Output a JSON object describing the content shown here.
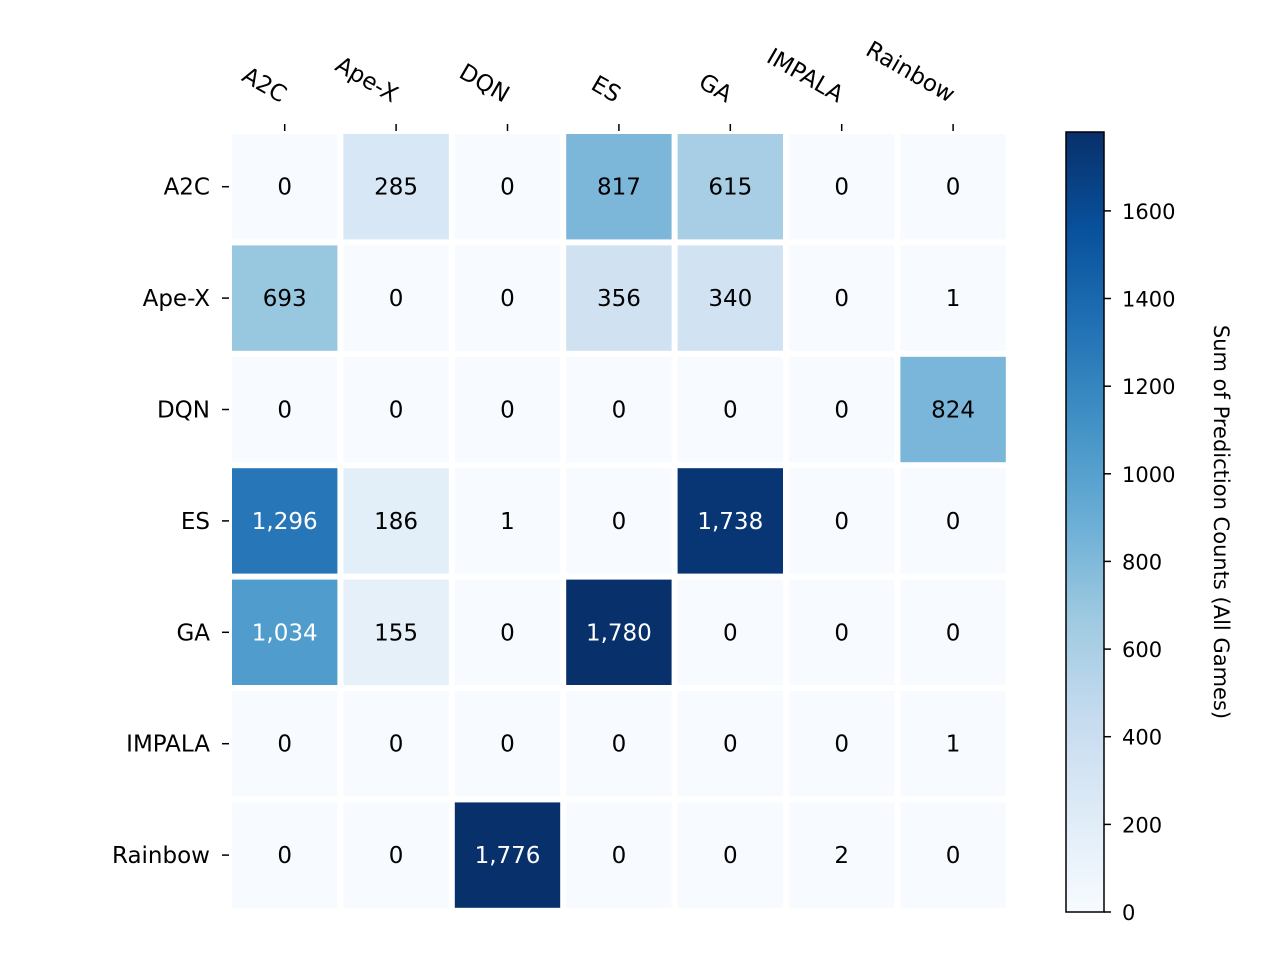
{
  "chart_data": {
    "type": "heatmap",
    "row_labels": [
      "A2C",
      "Ape-X",
      "DQN",
      "ES",
      "GA",
      "IMPALA",
      "Rainbow"
    ],
    "col_labels": [
      "A2C",
      "Ape-X",
      "DQN",
      "ES",
      "GA",
      "IMPALA",
      "Rainbow"
    ],
    "values": [
      [
        0,
        285,
        0,
        817,
        615,
        0,
        0
      ],
      [
        693,
        0,
        0,
        356,
        340,
        0,
        1
      ],
      [
        0,
        0,
        0,
        0,
        0,
        0,
        824
      ],
      [
        1296,
        186,
        1,
        0,
        1738,
        0,
        0
      ],
      [
        1034,
        155,
        0,
        1780,
        0,
        0,
        0
      ],
      [
        0,
        0,
        0,
        0,
        0,
        0,
        1
      ],
      [
        0,
        0,
        1776,
        0,
        0,
        2,
        0
      ]
    ],
    "cell_labels": [
      [
        "0",
        "285",
        "0",
        "817",
        "615",
        "0",
        "0"
      ],
      [
        "693",
        "0",
        "0",
        "356",
        "340",
        "0",
        "1"
      ],
      [
        "0",
        "0",
        "0",
        "0",
        "0",
        "0",
        "824"
      ],
      [
        "1,296",
        "186",
        "1",
        "0",
        "1,738",
        "0",
        "0"
      ],
      [
        "1,034",
        "155",
        "0",
        "1,780",
        "0",
        "0",
        "0"
      ],
      [
        "0",
        "0",
        "0",
        "0",
        "0",
        "0",
        "1"
      ],
      [
        "0",
        "0",
        "1,776",
        "0",
        "0",
        "2",
        "0"
      ]
    ],
    "colormap": "Blues",
    "colorbar": {
      "label": "Sum of Prediction Counts (All Games)",
      "range": [
        0,
        1780
      ],
      "ticks": [
        0,
        200,
        400,
        600,
        800,
        1000,
        1200,
        1400,
        1600
      ],
      "tick_labels": [
        "0",
        "200",
        "400",
        "600",
        "800",
        "1000",
        "1200",
        "1400",
        "1600"
      ]
    },
    "x_tick_position": "top",
    "x_tick_rotation_deg": -30,
    "title": "",
    "xlabel": "",
    "ylabel": ""
  }
}
